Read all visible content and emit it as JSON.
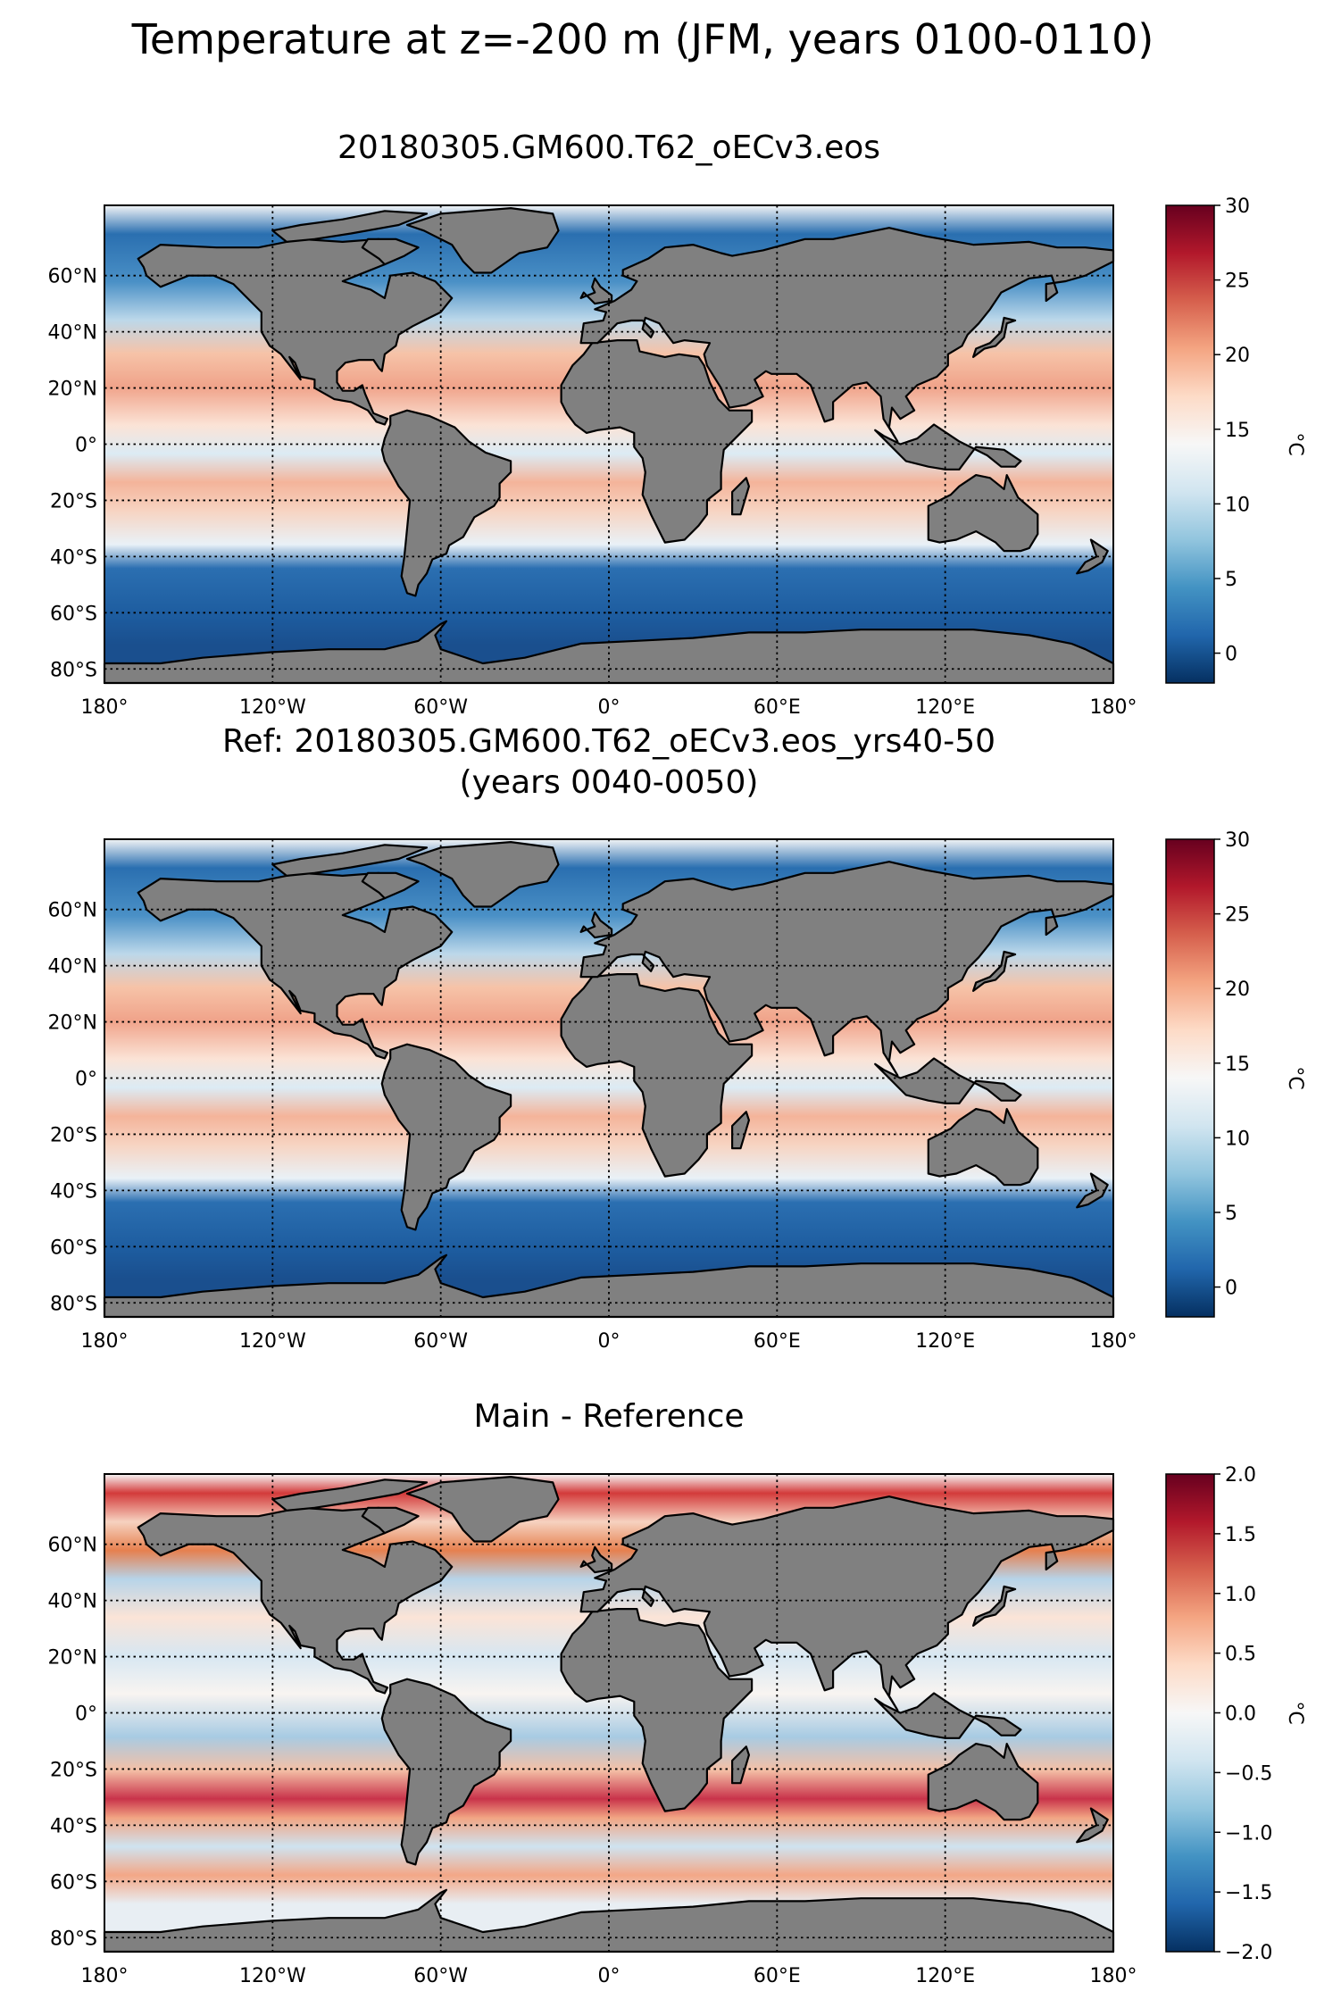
{
  "figure": {
    "suptitle": "Temperature at z=-200 m (JFM, years 0100-0110)"
  },
  "panels": [
    {
      "title_lines": [
        "20180305.GM600.T62_oECv3.eos"
      ],
      "colorbar": {
        "ticks": [
          "30",
          "25",
          "20",
          "15",
          "10",
          "5",
          "0"
        ],
        "label": "°C",
        "range": [
          -2,
          30
        ],
        "cmap": "RdBu_r"
      }
    },
    {
      "title_lines": [
        "Ref: 20180305.GM600.T62_oECv3.eos_yrs40-50",
        "(years 0040-0050)"
      ],
      "colorbar": {
        "ticks": [
          "30",
          "25",
          "20",
          "15",
          "10",
          "5",
          "0"
        ],
        "label": "°C",
        "range": [
          -2,
          30
        ],
        "cmap": "RdBu_r"
      }
    },
    {
      "title_lines": [
        "Main - Reference"
      ],
      "colorbar": {
        "ticks": [
          "2.0",
          "1.5",
          "1.0",
          "0.5",
          "0.0",
          "−0.5",
          "−1.0",
          "−1.5",
          "−2.0"
        ],
        "label": "°C",
        "range": [
          -2,
          2
        ],
        "cmap": "RdBu_r"
      }
    }
  ],
  "axes": {
    "lon_ticks": [
      "180°",
      "120°W",
      "60°W",
      "0°",
      "60°E",
      "120°E",
      "180°"
    ],
    "lat_ticks": [
      "60°N",
      "40°N",
      "20°N",
      "0°",
      "20°S",
      "40°S",
      "60°S",
      "80°S"
    ]
  },
  "chart_data": [
    {
      "type": "heatmap",
      "title": "20180305.GM600.T62_oECv3.eos",
      "zlabel": "°C",
      "zlim": [
        -2,
        30
      ],
      "lon_range": [
        -180,
        180
      ],
      "lat_range": [
        -85,
        85
      ],
      "grid": true,
      "land_color": "#808080"
    },
    {
      "type": "heatmap",
      "title": "Ref: 20180305.GM600.T62_oECv3.eos_yrs40-50 (years 0040-0050)",
      "zlabel": "°C",
      "zlim": [
        -2,
        30
      ],
      "lon_range": [
        -180,
        180
      ],
      "lat_range": [
        -85,
        85
      ],
      "grid": true,
      "land_color": "#808080"
    },
    {
      "type": "heatmap",
      "title": "Main - Reference",
      "zlabel": "°C",
      "zlim": [
        -2,
        2
      ],
      "lon_range": [
        -180,
        180
      ],
      "lat_range": [
        -85,
        85
      ],
      "grid": true,
      "land_color": "#808080"
    }
  ],
  "colors": {
    "land": "#808080",
    "cold": "#053061",
    "neutral": "#f7f7f7",
    "warm": "#67001f"
  }
}
